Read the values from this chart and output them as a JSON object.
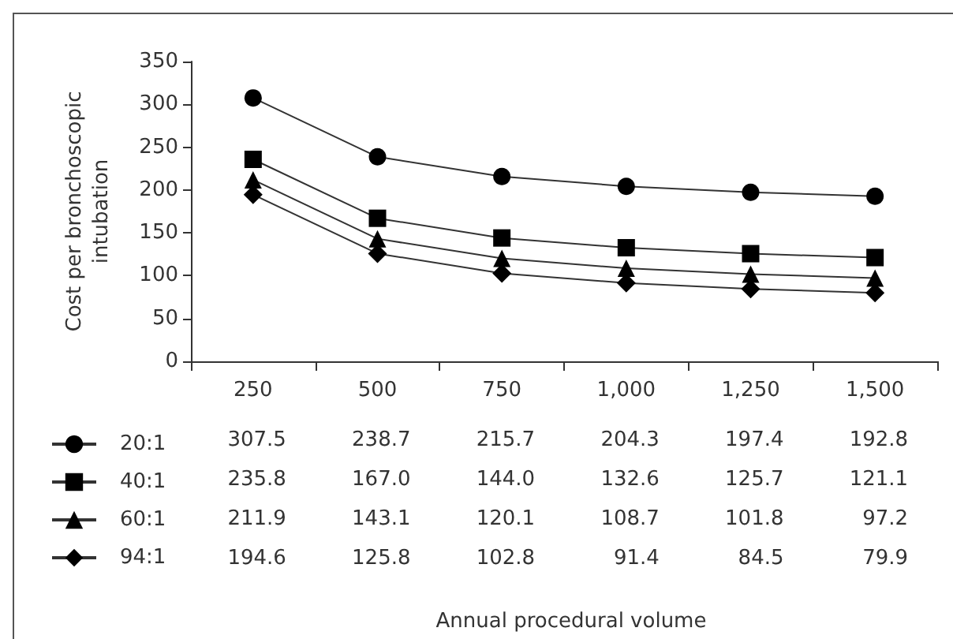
{
  "chart_data": {
    "type": "line",
    "annotations": [
      "Annual procedural volume"
    ],
    "ylabel": "Cost per bronchoscopic intubation",
    "categories": [
      "250",
      "500",
      "750",
      "1,000",
      "1,250",
      "1,500"
    ],
    "series": [
      {
        "name": "20:1",
        "color": "#000000",
        "marker": "circle",
        "values": [
          307.5,
          238.7,
          215.7,
          204.3,
          197.4,
          192.8
        ],
        "value_labels": [
          "307.5",
          "238.7",
          "215.7",
          "204.3",
          "197.4",
          "192.8"
        ]
      },
      {
        "name": "40:1",
        "color": "#000000",
        "marker": "square",
        "values": [
          235.8,
          167.0,
          144.0,
          132.6,
          125.7,
          121.1
        ],
        "value_labels": [
          "235.8",
          "167.0",
          "144.0",
          "132.6",
          "125.7",
          "121.1"
        ]
      },
      {
        "name": "60:1",
        "color": "#000000",
        "marker": "triangle",
        "values": [
          211.9,
          143.1,
          120.1,
          108.7,
          101.8,
          97.2
        ],
        "value_labels": [
          "211.9",
          "143.1",
          "120.1",
          "108.7",
          "101.8",
          "97.2"
        ]
      },
      {
        "name": "94:1",
        "color": "#000000",
        "marker": "diamond",
        "values": [
          194.6,
          125.8,
          102.8,
          91.4,
          84.5,
          79.9
        ],
        "value_labels": [
          "194.6",
          "125.8",
          "102.8",
          "91.4",
          "84.5",
          "79.9"
        ]
      }
    ],
    "ylim": [
      0,
      350
    ],
    "yticks": [
      0,
      50,
      100,
      150,
      200,
      250,
      300,
      350
    ],
    "grid": false,
    "legend": "bottom left",
    "line_style": "solid"
  }
}
